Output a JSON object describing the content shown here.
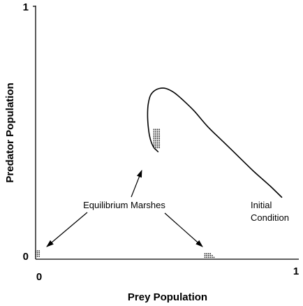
{
  "chart_data": {
    "type": "line",
    "xlabel": "Prey Population",
    "ylabel": "Predator Population",
    "xlim": [
      0,
      1
    ],
    "ylim": [
      0,
      1
    ],
    "x_ticks": [
      "0",
      "1"
    ],
    "y_ticks": [
      "0",
      "1"
    ],
    "grid": false,
    "series": [
      {
        "x": [
          0.945,
          0.9,
          0.84,
          0.78,
          0.72,
          0.66,
          0.61,
          0.565,
          0.53,
          0.5,
          0.475,
          0.455,
          0.44,
          0.432,
          0.43,
          0.432,
          0.437,
          0.445,
          0.455,
          0.465,
          0.47
        ],
        "y": [
          0.245,
          0.29,
          0.345,
          0.405,
          0.465,
          0.525,
          0.585,
          0.63,
          0.66,
          0.675,
          0.675,
          0.665,
          0.645,
          0.61,
          0.57,
          0.53,
          0.49,
          0.46,
          0.44,
          0.43,
          0.425
        ]
      }
    ],
    "markers": [
      {
        "cluster": "equilibrium-marsh-a",
        "x": 0.465,
        "y": 0.43
      },
      {
        "cluster": "equilibrium-marsh-b",
        "x": 0.0,
        "y": 0.005
      },
      {
        "cluster": "equilibrium-marsh-c",
        "x": 0.65,
        "y": 0.005
      }
    ],
    "annotations": [
      {
        "text": "Equilibrium Marshes"
      },
      {
        "text": "Initial"
      },
      {
        "text": "Condition"
      }
    ]
  }
}
